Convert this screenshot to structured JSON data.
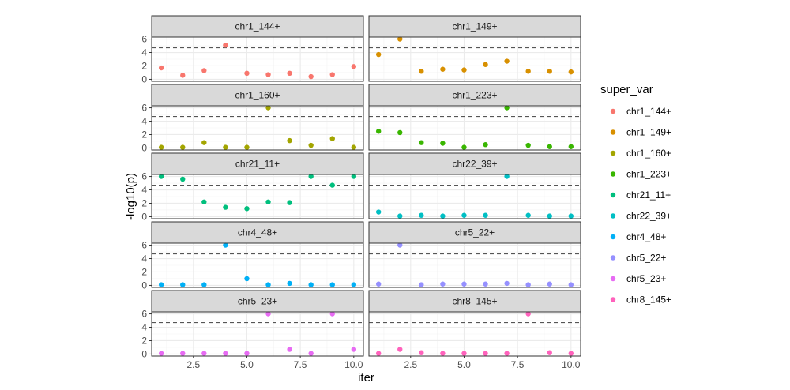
{
  "chart_data": {
    "type": "scatter",
    "xlabel": "iter",
    "ylabel": "-log10(p)",
    "x_ticks": [
      2.5,
      5.0,
      7.5,
      10.0
    ],
    "x_tick_labels": [
      "2.5",
      "5.0",
      "7.5",
      "10.0"
    ],
    "y_ticks": [
      0,
      2,
      4,
      6
    ],
    "y_tick_labels": [
      "0",
      "2",
      "4",
      "6"
    ],
    "xlim": [
      0.55,
      10.45
    ],
    "ylim": [
      -0.3,
      6.3
    ],
    "threshold": 4.7,
    "grid": true,
    "legend": {
      "title": "super_var",
      "position": "right"
    },
    "x": [
      1,
      2,
      3,
      4,
      5,
      6,
      7,
      8,
      9,
      10
    ],
    "series": [
      {
        "name": "chr1_144+",
        "color": "#F8766D",
        "values": [
          1.7,
          0.6,
          1.3,
          5.1,
          0.9,
          0.7,
          0.9,
          0.4,
          0.7,
          1.9
        ]
      },
      {
        "name": "chr1_149+",
        "color": "#D89000",
        "values": [
          3.7,
          6.0,
          1.2,
          1.5,
          1.4,
          2.2,
          2.7,
          1.2,
          1.2,
          1.1
        ]
      },
      {
        "name": "chr1_160+",
        "color": "#A3A500",
        "values": [
          0.1,
          0.1,
          0.8,
          0.1,
          0.1,
          6.0,
          1.1,
          0.4,
          1.4,
          0.1
        ]
      },
      {
        "name": "chr1_223+",
        "color": "#39B600",
        "values": [
          2.5,
          2.3,
          0.8,
          0.7,
          0.1,
          0.5,
          6.0,
          0.4,
          0.2,
          0.2
        ]
      },
      {
        "name": "chr21_11+",
        "color": "#00BF7D",
        "values": [
          6.0,
          5.6,
          2.2,
          1.4,
          1.2,
          2.2,
          2.1,
          6.0,
          4.7,
          6.0
        ]
      },
      {
        "name": "chr22_39+",
        "color": "#00BFC4",
        "values": [
          0.7,
          0.1,
          0.2,
          0.1,
          0.2,
          0.2,
          6.0,
          0.2,
          0.1,
          0.1
        ]
      },
      {
        "name": "chr4_48+",
        "color": "#00B0F6",
        "values": [
          0.1,
          0.1,
          0.1,
          6.0,
          1.0,
          0.1,
          0.3,
          0.1,
          0.1,
          0.1
        ]
      },
      {
        "name": "chr5_22+",
        "color": "#9590FF",
        "values": [
          0.2,
          6.0,
          0.1,
          0.2,
          0.2,
          0.2,
          0.3,
          0.1,
          0.2,
          0.1
        ]
      },
      {
        "name": "chr5_23+",
        "color": "#E76BF3",
        "values": [
          0.1,
          0.1,
          0.1,
          0.1,
          0.1,
          6.0,
          0.7,
          0.1,
          6.0,
          0.7
        ]
      },
      {
        "name": "chr8_145+",
        "color": "#FF62BC",
        "values": [
          0.1,
          0.7,
          0.2,
          0.1,
          0.1,
          0.1,
          0.1,
          6.0,
          0.2,
          0.1
        ]
      }
    ]
  }
}
